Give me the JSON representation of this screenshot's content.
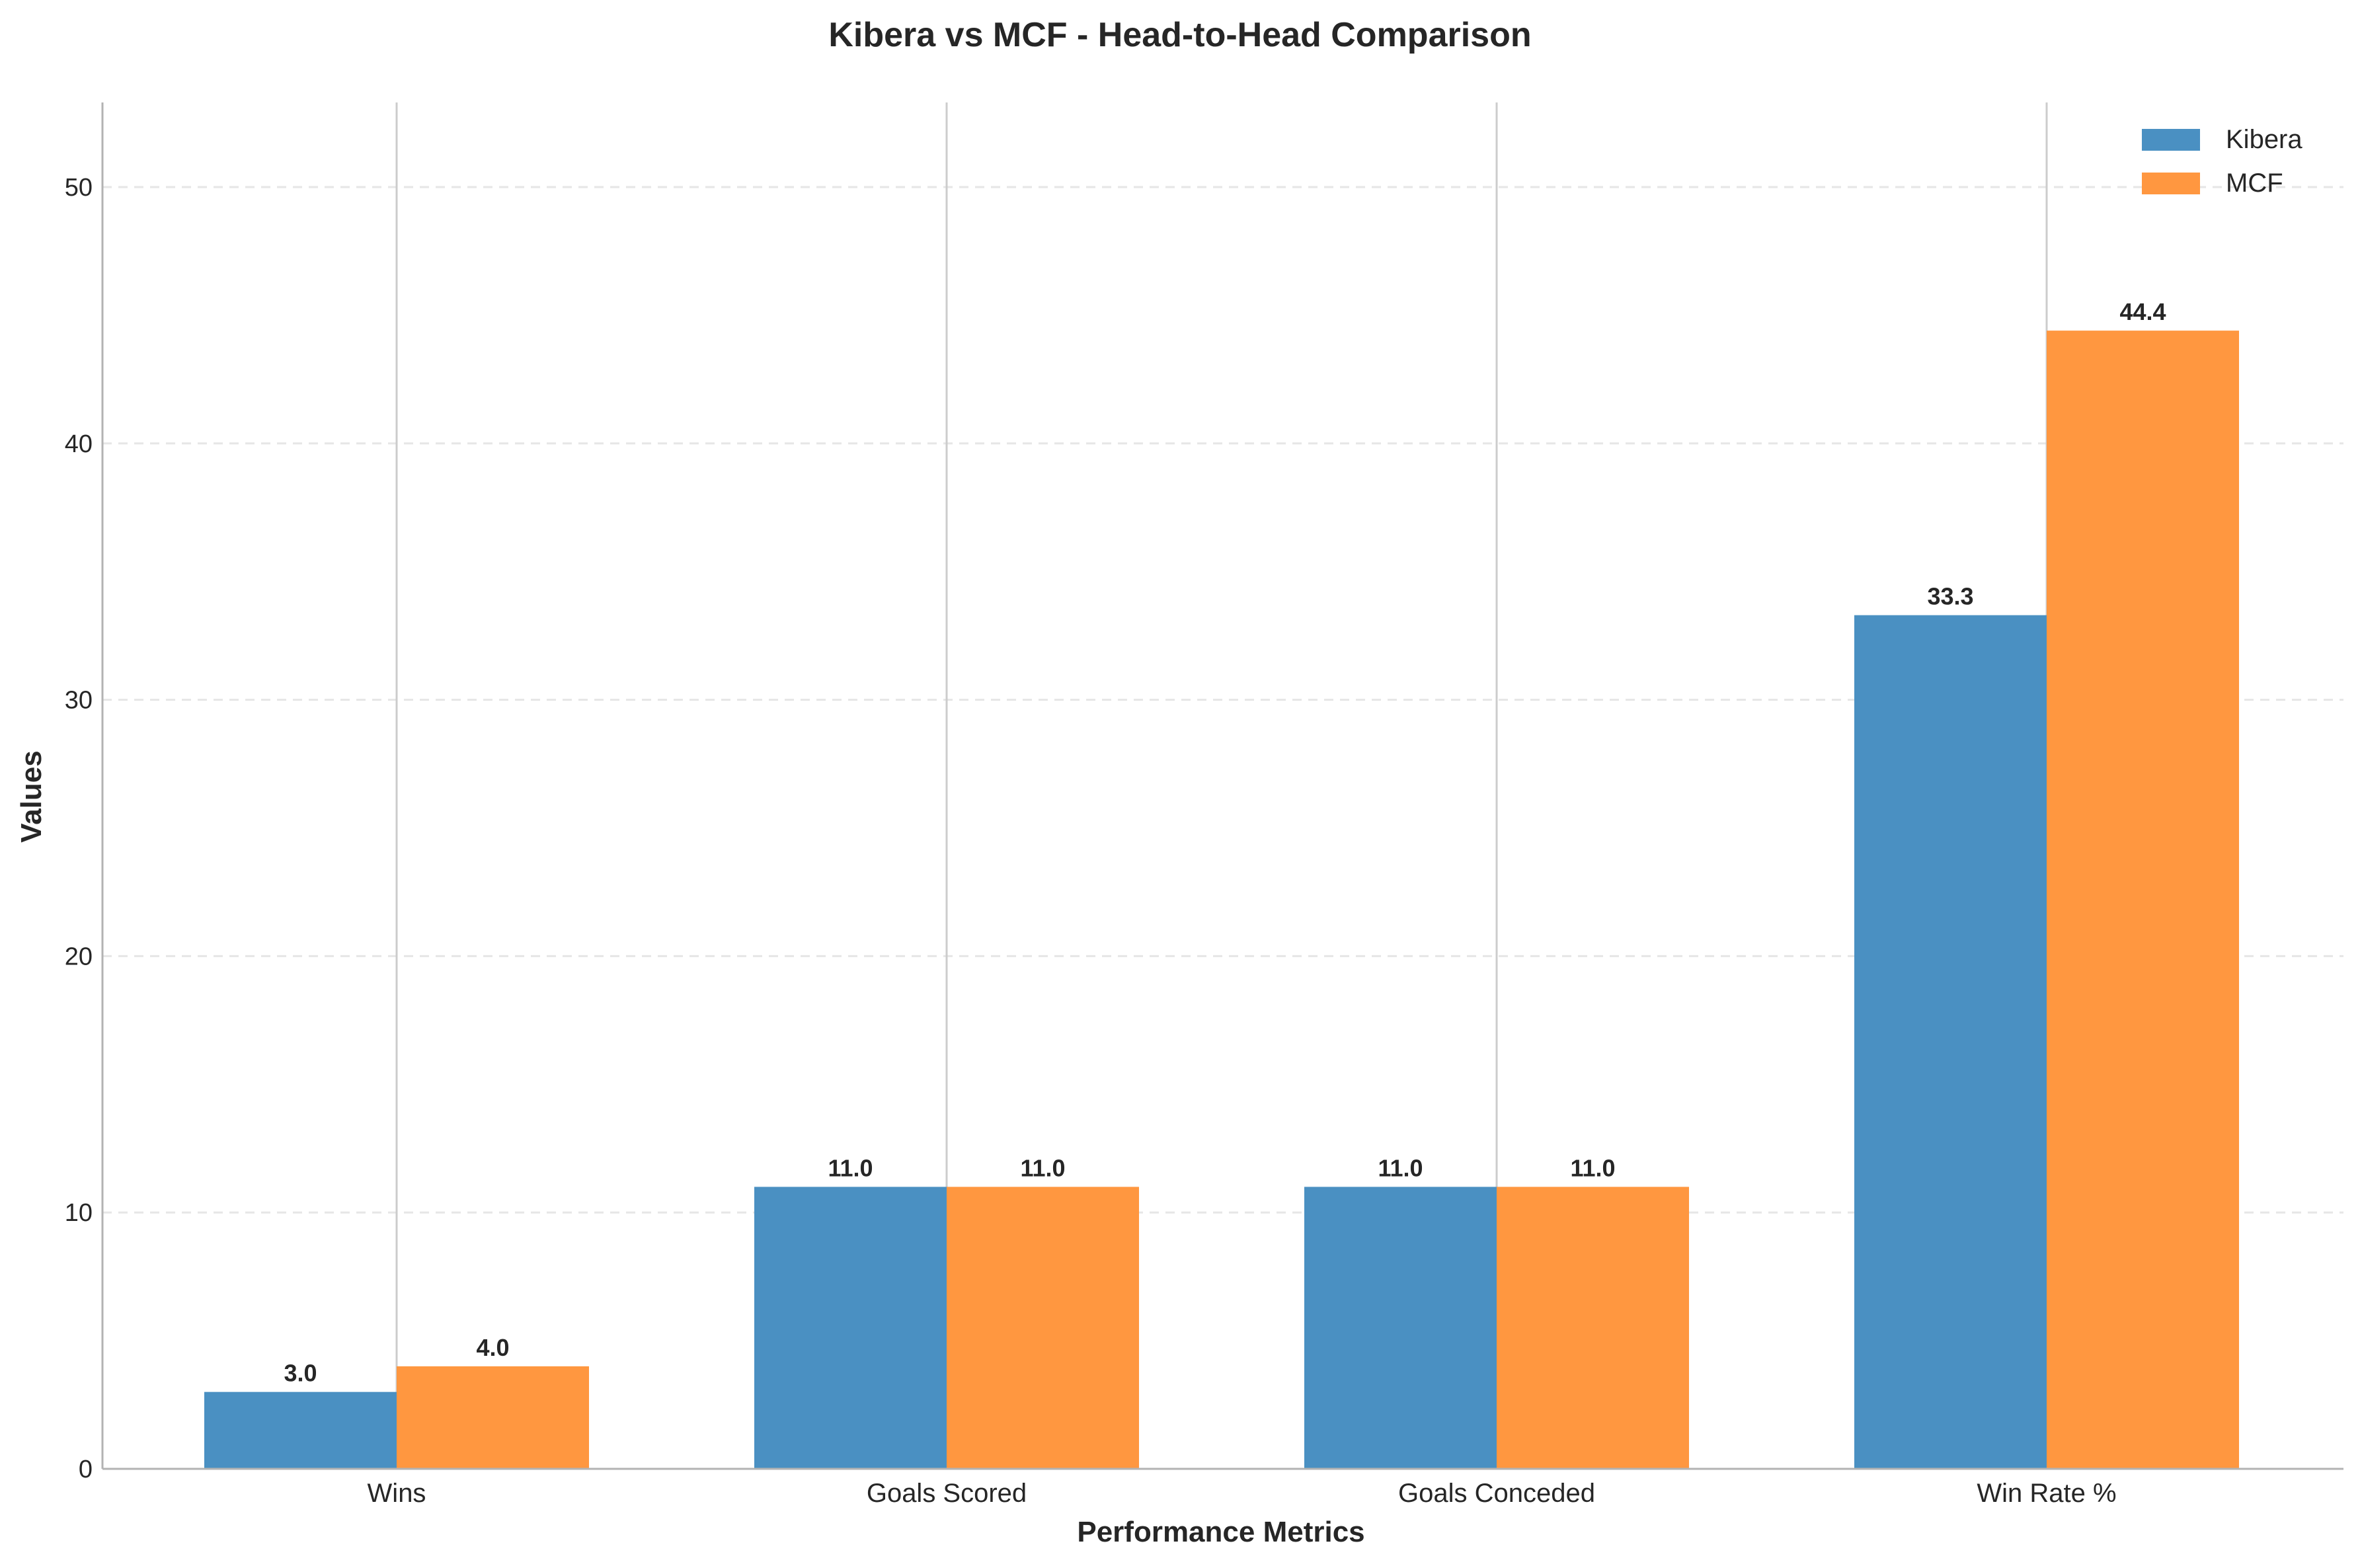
{
  "chart_data": {
    "type": "bar",
    "title": "Kibera vs MCF - Head-to-Head Comparison",
    "xlabel": "Performance Metrics",
    "ylabel": "Values",
    "categories": [
      "Wins",
      "Goals Scored",
      "Goals Conceded",
      "Win Rate %"
    ],
    "series": [
      {
        "name": "Kibera",
        "values": [
          3.0,
          11.0,
          11.0,
          33.3
        ],
        "labels": [
          "3.0",
          "11.0",
          "11.0",
          "33.3"
        ],
        "color": "#4a90c2"
      },
      {
        "name": "MCF",
        "values": [
          4.0,
          11.0,
          11.0,
          44.4
        ],
        "labels": [
          "4.0",
          "11.0",
          "11.0",
          "44.4"
        ],
        "color": "#ff9740"
      }
    ],
    "ylim": [
      0,
      53.3
    ],
    "yticks": [
      0,
      10,
      20,
      30,
      40,
      50
    ],
    "ytick_labels": [
      "0",
      "10",
      "20",
      "30",
      "40",
      "50"
    ],
    "grid": {
      "y": true,
      "y_style": "dashed",
      "x": true
    },
    "legend": "top-right"
  }
}
